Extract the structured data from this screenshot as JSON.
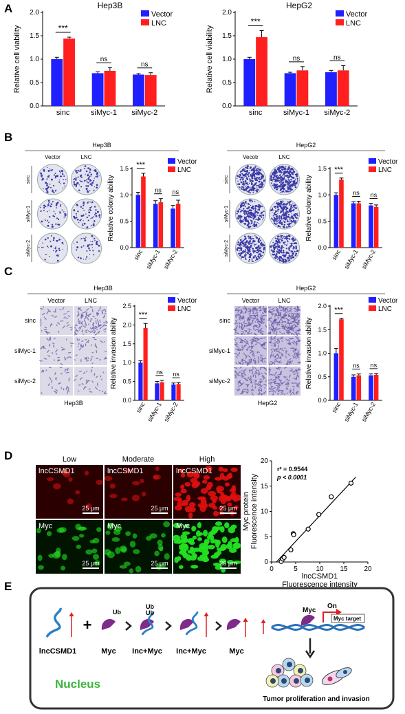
{
  "panels": {
    "A": {
      "letter": "A",
      "legend": [
        "Vector",
        "LNC"
      ],
      "charts": [
        {
          "title": "Hep3B",
          "ylabel": "Relative cell viability",
          "categories": [
            "sinc",
            "siMyc-1",
            "siMyc-2"
          ],
          "sig": [
            "***",
            "ns",
            "ns"
          ]
        },
        {
          "title": "HepG2",
          "ylabel": "Relative cell viability",
          "categories": [
            "sinc",
            "siMyc-1",
            "siMyc-2"
          ],
          "sig": [
            "***",
            "ns",
            "ns"
          ]
        }
      ]
    },
    "B": {
      "letter": "B",
      "groups": [
        {
          "cell": "Hep3B",
          "col_labels": [
            "Vector",
            "LNC"
          ],
          "row_labels": [
            "sinc",
            "siMyc-1",
            "siMyc-2"
          ],
          "ylabel": "Relative colony ability",
          "categories": [
            "sinc",
            "siMyc-1",
            "siMyc-2"
          ],
          "legend": [
            "Vector",
            "LNC"
          ],
          "sig": [
            "***",
            "ns",
            "ns"
          ]
        },
        {
          "cell": "HepG2",
          "col_labels": [
            "Vecotr",
            "LNC"
          ],
          "row_labels": [
            "sinc",
            "siMyc-1",
            "siMyc-2"
          ],
          "ylabel": "Relative colony ability",
          "categories": [
            "sinc",
            "siMyc-1",
            "siMyc-2"
          ],
          "legend": [
            "Vector",
            "LNC"
          ],
          "sig": [
            "***",
            "ns",
            "ns"
          ]
        }
      ]
    },
    "C": {
      "letter": "C",
      "groups": [
        {
          "cell": "Hep3B",
          "col_labels": [
            "Vector",
            "LNC"
          ],
          "row_labels": [
            "sinc",
            "siMyc-1",
            "siMyc-2"
          ],
          "caption": "Hep3B",
          "ylabel": "Relative invasion ability",
          "categories": [
            "sinc",
            "siMyc-1",
            "siMyc-2"
          ],
          "legend": [
            "Vector",
            "LNC"
          ],
          "sig": [
            "***",
            "ns",
            "ns"
          ]
        },
        {
          "cell": "HepG2",
          "col_labels": [
            "Vector",
            "LNC"
          ],
          "row_labels": [
            "sinc",
            "siMyc-1",
            "siMyc-2"
          ],
          "caption": "HepG2",
          "ylabel": "Relative invasion ability",
          "categories": [
            "sinc",
            "siMyc-1",
            "siMyc-2"
          ],
          "legend": [
            "Vector",
            "LNC"
          ],
          "sig": [
            "***",
            "ns",
            "ns"
          ]
        }
      ]
    },
    "D": {
      "letter": "D",
      "col_labels": [
        "Low",
        "Moderate",
        "High"
      ],
      "row_labels": [
        "lncCSMD1",
        "Myc"
      ],
      "scale_bar": "25 μm",
      "scatter": {
        "r2": "r² = 0.9544",
        "p": "p < 0.0001",
        "xlabel1": "lncCSMD1",
        "xlabel2": "Fluorescence intensity",
        "ylabel1": "Myc protein",
        "ylabel2": "Fluorescence intensity"
      }
    },
    "E": {
      "letter": "E",
      "labels": {
        "lnc": "lncCSMD1",
        "myc": "Myc",
        "inc_myc_1": "Inc+Myc",
        "inc_myc_2": "Inc+Myc",
        "myc2": "Myc",
        "myc_dna": "Myc",
        "on": "On",
        "myc_target": "Myc target",
        "ub": "Ub",
        "nucleus": "Nucleus",
        "outcome": "Tumor proliferation and invasion"
      }
    }
  },
  "colors": {
    "vector": "#1f1fff",
    "lnc": "#ff1f1f",
    "nucleus_text": "#3cb43c"
  },
  "chart_data": [
    {
      "type": "bar",
      "title": "Hep3B",
      "ylabel": "Relative cell viability",
      "categories": [
        "sinc",
        "siMyc-1",
        "siMyc-2"
      ],
      "ylim": [
        0,
        2.0
      ],
      "yticks": [
        0.0,
        0.5,
        1.0,
        1.5,
        2.0
      ],
      "series": [
        {
          "name": "Vector",
          "values": [
            1.0,
            0.7,
            0.67
          ],
          "errors": [
            0.04,
            0.03,
            0.02
          ]
        },
        {
          "name": "LNC",
          "values": [
            1.44,
            0.75,
            0.66
          ],
          "errors": [
            0.03,
            0.07,
            0.05
          ]
        }
      ]
    },
    {
      "type": "bar",
      "title": "HepG2",
      "ylabel": "Relative cell viability",
      "categories": [
        "sinc",
        "siMyc-1",
        "siMyc-2"
      ],
      "ylim": [
        0,
        2.0
      ],
      "yticks": [
        0.0,
        0.5,
        1.0,
        1.5,
        2.0
      ],
      "series": [
        {
          "name": "Vector",
          "values": [
            1.0,
            0.7,
            0.72
          ],
          "errors": [
            0.04,
            0.02,
            0.04
          ]
        },
        {
          "name": "LNC",
          "values": [
            1.47,
            0.76,
            0.76
          ],
          "errors": [
            0.14,
            0.08,
            0.1
          ]
        }
      ]
    },
    {
      "type": "bar",
      "title": "Hep3B",
      "ylabel": "Relative colony ability",
      "categories": [
        "sinc",
        "siMyc-1",
        "siMyc-2"
      ],
      "ylim": [
        0,
        1.5
      ],
      "yticks": [
        0.0,
        0.5,
        1.0,
        1.5
      ],
      "series": [
        {
          "name": "Vector",
          "values": [
            1.0,
            0.83,
            0.74
          ],
          "errors": [
            0.05,
            0.06,
            0.06
          ]
        },
        {
          "name": "LNC",
          "values": [
            1.35,
            0.86,
            0.83
          ],
          "errors": [
            0.06,
            0.07,
            0.07
          ]
        }
      ]
    },
    {
      "type": "bar",
      "title": "HepG2",
      "ylabel": "Relative colony ability",
      "categories": [
        "sinc",
        "siMyc-1",
        "siMyc-2"
      ],
      "ylim": [
        0,
        1.5
      ],
      "yticks": [
        0.0,
        0.5,
        1.0,
        1.5
      ],
      "series": [
        {
          "name": "Vector",
          "values": [
            1.0,
            0.84,
            0.8
          ],
          "errors": [
            0.04,
            0.03,
            0.04
          ]
        },
        {
          "name": "LNC",
          "values": [
            1.29,
            0.84,
            0.77
          ],
          "errors": [
            0.03,
            0.04,
            0.04
          ]
        }
      ]
    },
    {
      "type": "bar",
      "title": "Hep3B",
      "ylabel": "Relative invasion ability",
      "categories": [
        "sinc",
        "siMyc-1",
        "siMyc-2"
      ],
      "ylim": [
        0,
        2.5
      ],
      "yticks": [
        0.0,
        0.5,
        1.0,
        1.5,
        2.0,
        2.5
      ],
      "series": [
        {
          "name": "Vector",
          "values": [
            1.0,
            0.45,
            0.42
          ],
          "errors": [
            0.05,
            0.05,
            0.04
          ]
        },
        {
          "name": "LNC",
          "values": [
            1.92,
            0.48,
            0.43
          ],
          "errors": [
            0.12,
            0.05,
            0.04
          ]
        }
      ]
    },
    {
      "type": "bar",
      "title": "HepG2",
      "ylabel": "Relative invasion ability",
      "categories": [
        "sinc",
        "siMyc-1",
        "siMyc-2"
      ],
      "ylim": [
        0,
        2.0
      ],
      "yticks": [
        0.0,
        0.5,
        1.0,
        1.5,
        2.0
      ],
      "series": [
        {
          "name": "Vector",
          "values": [
            1.0,
            0.5,
            0.53
          ],
          "errors": [
            0.1,
            0.04,
            0.03
          ]
        },
        {
          "name": "LNC",
          "values": [
            1.72,
            0.53,
            0.54
          ],
          "errors": [
            0.02,
            0.03,
            0.03
          ]
        }
      ]
    },
    {
      "type": "scatter",
      "xlabel": "lncCSMD1 Fluorescence intensity",
      "ylabel": "Myc protein Fluorescence intensity",
      "xlim": [
        0,
        20
      ],
      "ylim": [
        0,
        20
      ],
      "xticks": [
        0,
        5,
        10,
        15,
        20
      ],
      "yticks": [
        0,
        5,
        10,
        15,
        20
      ],
      "points": [
        [
          2.0,
          0.1
        ],
        [
          2.3,
          0.6
        ],
        [
          2.6,
          0.9
        ],
        [
          4.0,
          2.4
        ],
        [
          4.5,
          5.6
        ],
        [
          4.6,
          5.4
        ],
        [
          7.6,
          6.5
        ],
        [
          9.8,
          9.4
        ],
        [
          12.4,
          12.9
        ],
        [
          16.5,
          15.6
        ]
      ],
      "fit": [
        [
          1.0,
          -0.6
        ],
        [
          17.5,
          16.8
        ]
      ],
      "r2": 0.9544
    }
  ]
}
